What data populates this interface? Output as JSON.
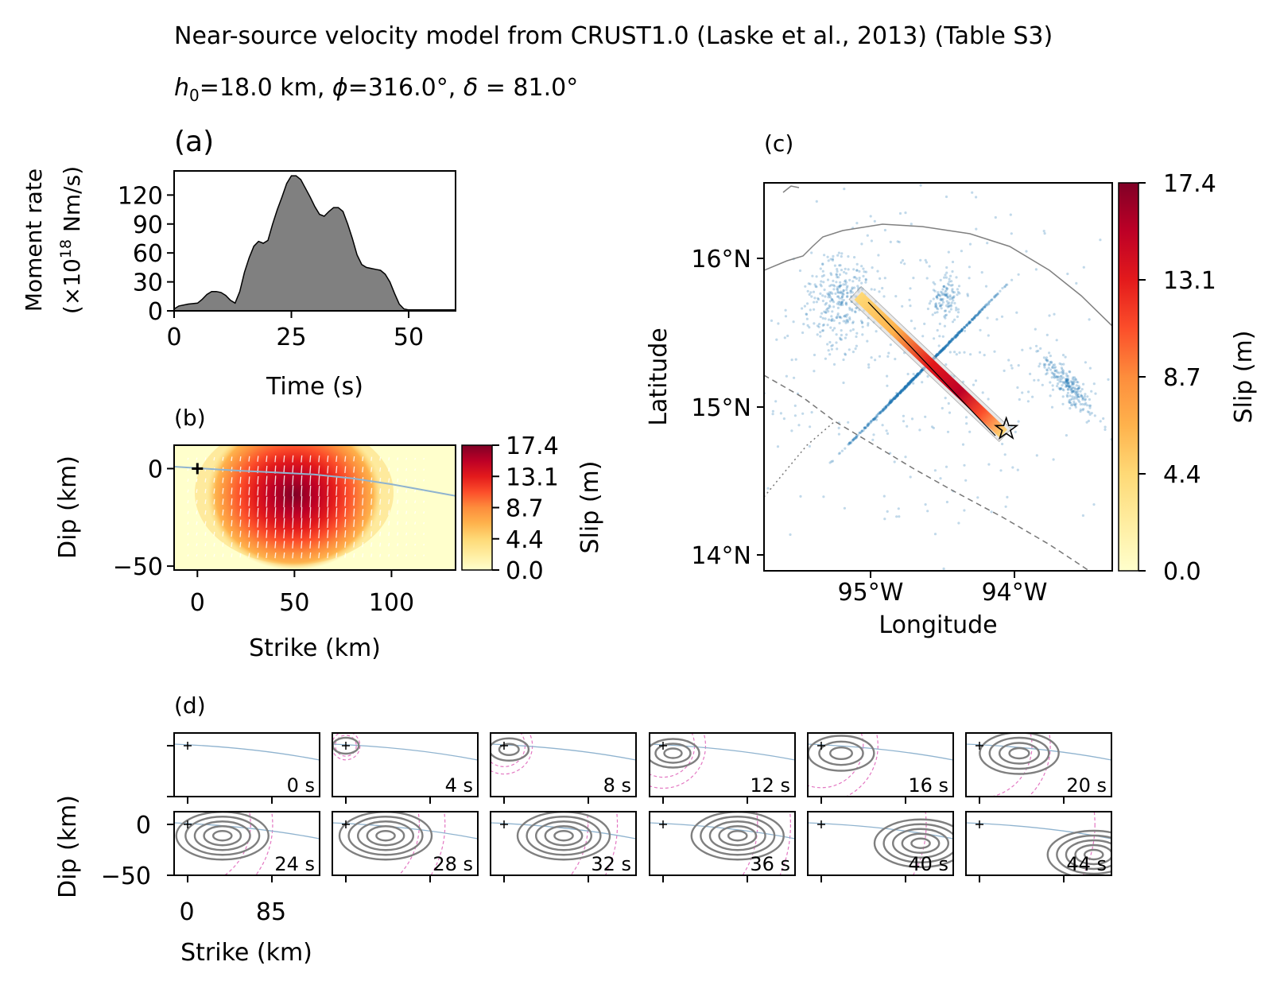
{
  "figure": {
    "suptitle": "Near-source velocity model from CRUST1.0 (Laske et al., 2013) (Table S3)",
    "params": {
      "h0": "18.0 km",
      "phi": "316.0°",
      "delta": "81.0°"
    }
  },
  "colors": {
    "moment_fill": "#808080",
    "contour": "#7f7f7f",
    "trench": "#8fb3cf",
    "rupture_front": "#e377c2",
    "seismicity": "#1f77b4",
    "slip_cmap": [
      "#ffffcc",
      "#ffeda0",
      "#fed976",
      "#feb24c",
      "#fd8d3c",
      "#fc4e2a",
      "#e31a1c",
      "#bd0026",
      "#800026"
    ]
  },
  "chart_data": [
    {
      "panel": "(a)",
      "type": "area",
      "xlabel": "Time (s)",
      "ylabel_line1": "Moment rate",
      "ylabel_line2": "(×10",
      "ylabel_exp": "18",
      "ylabel_unit": " Nm/s)",
      "xlim": [
        0,
        60
      ],
      "ylim": [
        0,
        145
      ],
      "xticks": [
        0,
        25,
        50
      ],
      "yticks": [
        0,
        30,
        60,
        90,
        120
      ],
      "x": [
        0,
        1,
        3,
        5,
        6,
        7,
        8,
        9,
        10,
        11,
        12,
        13,
        14,
        15,
        16,
        17,
        18,
        19,
        20,
        21,
        22,
        23,
        24,
        25,
        26,
        27,
        28,
        29,
        30,
        31,
        32,
        33,
        34,
        35,
        36,
        37,
        38,
        39,
        40,
        41,
        42,
        43,
        44,
        45,
        46,
        47,
        48,
        49,
        50,
        51,
        52,
        55,
        60
      ],
      "y": [
        2,
        5,
        7,
        8,
        12,
        17,
        20,
        20,
        19,
        16,
        11,
        8,
        20,
        40,
        55,
        67,
        72,
        70,
        73,
        90,
        105,
        118,
        132,
        140,
        140,
        136,
        127,
        118,
        108,
        100,
        98,
        103,
        107,
        107,
        103,
        90,
        75,
        58,
        48,
        45,
        44,
        43,
        42,
        38,
        30,
        18,
        7,
        2,
        1,
        1,
        1,
        1,
        1
      ]
    },
    {
      "panel": "(b)",
      "type": "heatmap",
      "xlabel": "Strike (km)",
      "ylabel": "Dip (km)",
      "xlim": [
        -12,
        133
      ],
      "ylim": [
        -52,
        12
      ],
      "xticks": [
        0,
        50,
        100
      ],
      "yticks": [
        0,
        -50
      ],
      "colorbar_label": "Slip (m)",
      "colorbar_ticks": [
        "17.4",
        "13.1",
        "8.7",
        "4.4",
        "0.0"
      ],
      "slip_max": 17.4,
      "peak_slip_location": {
        "strike_km": 50,
        "dip_km": -17
      },
      "hypocenter": {
        "strike_km": 0,
        "dip_km": 0
      },
      "trench_trace": [
        [
          -12,
          1
        ],
        [
          20,
          -1
        ],
        [
          40,
          -2
        ],
        [
          60,
          -3
        ],
        [
          80,
          -5
        ],
        [
          100,
          -8
        ],
        [
          133,
          -14
        ]
      ]
    },
    {
      "panel": "(c)",
      "type": "scatter",
      "xlabel": "Longitude",
      "ylabel": "Latitude",
      "xlim": [
        -95.7,
        -93.4
      ],
      "ylim": [
        13.9,
        16.5
      ],
      "xticks": [
        "95°W",
        "94°W"
      ],
      "yticks": [
        "16°N",
        "15°N",
        "14°N"
      ],
      "colorbar_label": "Slip (m)",
      "colorbar_ticks": [
        "17.4",
        "13.1",
        "8.7",
        "4.4",
        "0.0"
      ],
      "epicenter": {
        "lon": -94.1,
        "lat": 14.85
      },
      "fault_trace": [
        [
          -95.0,
          15.7
        ],
        [
          -94.1,
          14.82
        ]
      ],
      "seismicity_clusters": [
        {
          "lon": -95.2,
          "lat": 15.7
        },
        {
          "lon": -94.7,
          "lat": 15.3
        },
        {
          "lon": -94.5,
          "lat": 15.7
        },
        {
          "lon": -93.7,
          "lat": 15.15
        }
      ]
    },
    {
      "panel": "(d)",
      "type": "heatmap",
      "xlabel": "Strike (km)",
      "ylabel": "Dip (km)",
      "xticks": [
        0,
        85
      ],
      "yticks": [
        0,
        -50
      ],
      "snapshots": [
        "0 s",
        "4 s",
        "8 s",
        "12 s",
        "16 s",
        "20 s",
        "24 s",
        "28 s",
        "32 s",
        "36 s",
        "40 s",
        "44 s"
      ],
      "contour_centers_km": [
        [
          0,
          0
        ],
        [
          0,
          0
        ],
        [
          5,
          -5
        ],
        [
          10,
          -10
        ],
        [
          20,
          -10
        ],
        [
          40,
          -10
        ],
        [
          35,
          -15
        ],
        [
          40,
          -15
        ],
        [
          60,
          -15
        ],
        [
          75,
          -15
        ],
        [
          100,
          -25
        ],
        [
          115,
          -40
        ]
      ]
    }
  ]
}
